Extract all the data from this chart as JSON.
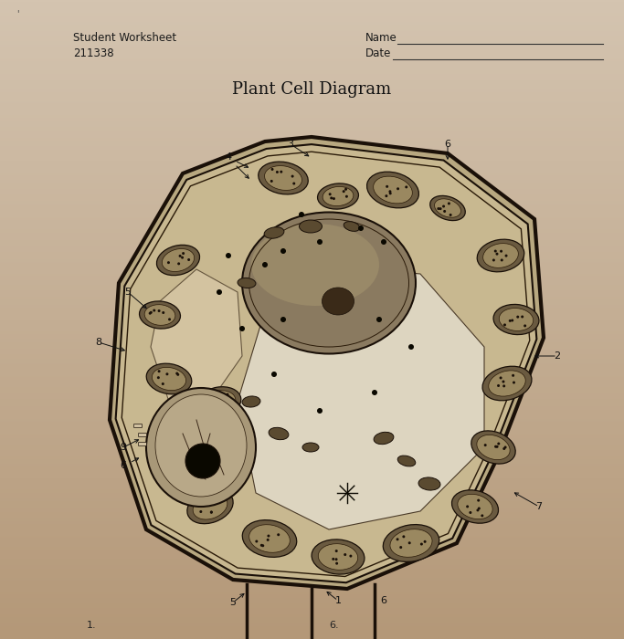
{
  "bg_color_top": "#d4c4b0",
  "bg_color_bottom": "#c4a888",
  "header_left_line1": "Student Worksheet",
  "header_left_line2": "211338",
  "header_right_name": "Name",
  "header_right_date": "Date",
  "title": "Plant Cell Diagram",
  "title_fontsize": 13,
  "header_fontsize": 8.5,
  "label_fontsize": 8,
  "fig_width": 6.83,
  "fig_height": 7.0,
  "dpi": 100,
  "cell_color": "#c8baa0",
  "cell_edge": "#1a1008",
  "vacuole_color": "#ddd5c0",
  "nucleus_dark": "#7a6850",
  "nucleus_light": "#b0a080",
  "chloroplast_dark": "#5a5040",
  "chloroplast_mid": "#8a7860",
  "chloroplast_light": "#b0a080",
  "wall_color": "#d0c0a0"
}
